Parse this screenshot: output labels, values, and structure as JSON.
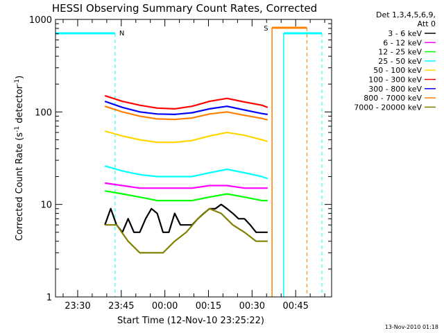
{
  "chart_data": {
    "type": "line",
    "title": "HESSI Observing Summary Count Rates, Corrected",
    "xlabel": "Start Time (12-Nov-10 23:25:22)",
    "ylabel_main": "Corrected Count Rate (s",
    "ylabel_sup1": "-1",
    "ylabel_mid": " detector",
    "ylabel_sup2": "-1",
    "ylabel_end": ")",
    "yscale": "log",
    "ylim": [
      1,
      1000
    ],
    "xlim_minutes": [
      -3,
      92
    ],
    "x_ticks": [
      {
        "label": "23:30",
        "min": 4.63
      },
      {
        "label": "23:45",
        "min": 19.63
      },
      {
        "label": "00:00",
        "min": 34.63
      },
      {
        "label": "00:15",
        "min": 49.63
      },
      {
        "label": "00:30",
        "min": 64.63
      },
      {
        "label": "00:45",
        "min": 79.63
      },
      {
        "label": "01:00",
        "min": 94.63
      }
    ],
    "y_ticks": [
      {
        "label": "1",
        "v": 1
      },
      {
        "label": "10",
        "v": 10
      },
      {
        "label": "100",
        "v": 100
      },
      {
        "label": "1000",
        "v": 1000
      }
    ],
    "legend_header": [
      "Det 1,3,4,5,6,9,",
      "Att 0"
    ],
    "legend_placement": "right",
    "series": [
      {
        "name": "3 - 6 keV",
        "color": "#000000",
        "x": [
          14,
          16,
          18,
          20,
          22,
          24,
          26,
          28,
          30,
          32,
          34,
          36,
          38,
          40,
          42,
          44,
          46,
          48,
          50,
          52,
          54,
          56,
          58,
          60,
          62,
          64,
          66,
          68,
          70
        ],
        "y": [
          6,
          9,
          6,
          5,
          7,
          5,
          5,
          7,
          9,
          8,
          5,
          5,
          8,
          6,
          6,
          6,
          7,
          8,
          9,
          9,
          10,
          9,
          8,
          7,
          7,
          6,
          5,
          5,
          5
        ]
      },
      {
        "name": "6 - 12 keV",
        "color": "#ff00ff",
        "x": [
          14,
          20,
          26,
          32,
          38,
          44,
          50,
          56,
          62,
          68,
          70
        ],
        "y": [
          17,
          16,
          15,
          15,
          15,
          15,
          16,
          16,
          15,
          15,
          15
        ]
      },
      {
        "name": "12 - 25 keV",
        "color": "#00ff00",
        "x": [
          14,
          20,
          26,
          32,
          38,
          44,
          50,
          56,
          62,
          68,
          70
        ],
        "y": [
          14,
          13,
          12,
          11,
          11,
          11,
          12,
          13,
          12,
          11,
          11
        ]
      },
      {
        "name": "25 - 50 keV",
        "color": "#00ffff",
        "x": [
          14,
          20,
          26,
          32,
          38,
          44,
          50,
          56,
          62,
          68,
          70
        ],
        "y": [
          26,
          23,
          21,
          20,
          20,
          20,
          22,
          24,
          22,
          20,
          19
        ]
      },
      {
        "name": "50 - 100 keV",
        "color": "#ffd700",
        "x": [
          14,
          20,
          26,
          32,
          38,
          44,
          50,
          56,
          62,
          68,
          70
        ],
        "y": [
          62,
          55,
          50,
          47,
          47,
          49,
          55,
          60,
          56,
          50,
          48
        ]
      },
      {
        "name": "100 - 300 keV",
        "color": "#ff0000",
        "x": [
          14,
          20,
          26,
          32,
          38,
          44,
          50,
          56,
          62,
          68,
          70
        ],
        "y": [
          150,
          130,
          118,
          110,
          108,
          115,
          130,
          140,
          128,
          118,
          112
        ]
      },
      {
        "name": "300 - 800 keV",
        "color": "#0000ff",
        "x": [
          14,
          20,
          26,
          32,
          38,
          44,
          50,
          56,
          62,
          68,
          70
        ],
        "y": [
          130,
          112,
          100,
          95,
          94,
          98,
          108,
          115,
          105,
          96,
          94
        ]
      },
      {
        "name": "800 - 7000 keV",
        "color": "#ff8000",
        "x": [
          14,
          20,
          26,
          32,
          38,
          44,
          50,
          56,
          62,
          68,
          70
        ],
        "y": [
          115,
          100,
          90,
          84,
          83,
          86,
          95,
          100,
          92,
          85,
          82
        ]
      },
      {
        "name": "7000 - 20000 keV",
        "color": "#808000",
        "x": [
          14,
          18,
          22,
          26,
          30,
          34,
          38,
          42,
          46,
          50,
          54,
          58,
          62,
          66,
          70
        ],
        "y": [
          6,
          6,
          4,
          3,
          3,
          3,
          4,
          5,
          7,
          9,
          8,
          6,
          5,
          4,
          4
        ]
      }
    ],
    "annotations": [
      {
        "text": "N",
        "color": "#00ffff"
      },
      {
        "text": "S",
        "color": "#ff8000"
      }
    ],
    "footer_date": "13-Nov-2010 01:18"
  }
}
